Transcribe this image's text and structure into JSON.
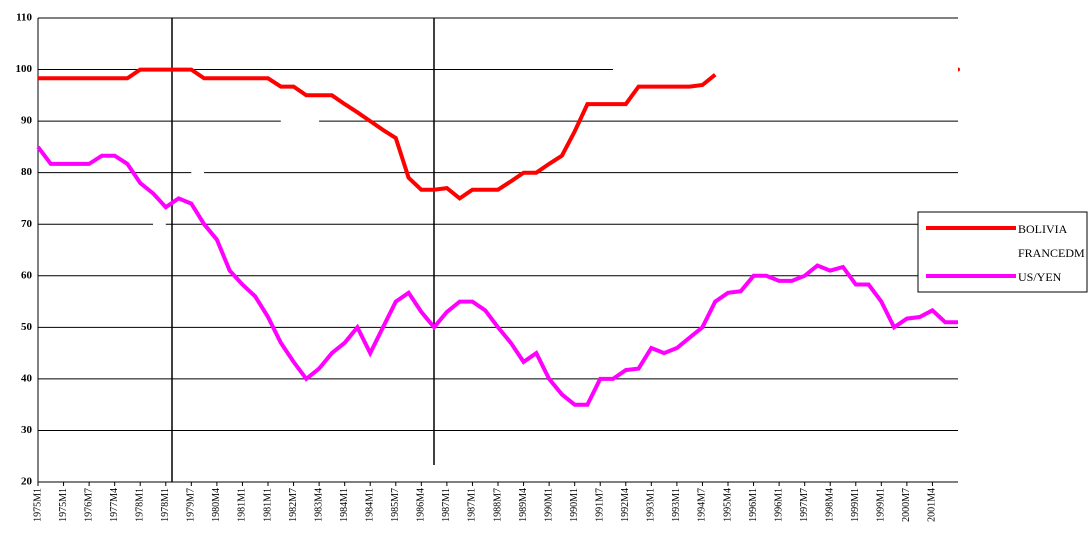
{
  "chart_data": {
    "type": "line",
    "categories": [
      "1975M1",
      null,
      "1975M1",
      null,
      "1976M7",
      null,
      "1977M4",
      null,
      "1978M1",
      null,
      "1978M1",
      null,
      "1979M7",
      null,
      "1980M4",
      null,
      "1981M1",
      null,
      "1981M1",
      null,
      "1982M7",
      null,
      "1983M4",
      null,
      "1984M1",
      null,
      "1984M1",
      null,
      "1985M7",
      null,
      "1986M4",
      null,
      "1987M1",
      null,
      "1987M1",
      null,
      "1988M7",
      null,
      "1989M4",
      null,
      "1990M1",
      null,
      "1990M1",
      null,
      "1991M7",
      null,
      "1992M4",
      null,
      "1993M1",
      null,
      "1993M1",
      null,
      "1994M7",
      null,
      "1995M4",
      null,
      "1996M1",
      null,
      "1996M1",
      null,
      "1997M7",
      null,
      "1998M4",
      null,
      "1999M1",
      null,
      "1999M1",
      null,
      "2000M7",
      null,
      "2001M4",
      null,
      null
    ],
    "series": [
      {
        "name": "BOLIVIA",
        "color": "#ff0000",
        "values": [
          98.3,
          98.3,
          98.3,
          98.3,
          98.3,
          98.3,
          98.3,
          98.3,
          100,
          100,
          100,
          100,
          100,
          98.3,
          98.3,
          98.3,
          98.3,
          98.3,
          98.3,
          96.7,
          96.7,
          95,
          95,
          95,
          93.3,
          91.7,
          90,
          88.3,
          86.7,
          79,
          76.7,
          76.7,
          77,
          75,
          76.7,
          76.7,
          76.7,
          78.3,
          80,
          80,
          81.7,
          83.3,
          88,
          93.3,
          93.3,
          93.3,
          93.3,
          96.7,
          96.7,
          96.7,
          96.7,
          96.7,
          97,
          99,
          null,
          null,
          null,
          null,
          null,
          null,
          null,
          null,
          null,
          null,
          null,
          null,
          null,
          null,
          null,
          null,
          null,
          null,
          100
        ]
      },
      {
        "name": "FRANCEDM",
        "color": "#ffffff",
        "values": [
          null,
          null,
          null,
          null,
          null,
          null,
          null,
          null,
          null,
          70,
          70,
          null,
          80,
          80,
          null,
          null,
          null,
          null,
          null,
          90,
          90,
          90,
          90,
          null,
          null,
          null,
          null,
          null,
          null,
          null,
          null,
          null,
          null,
          null,
          null,
          null,
          null,
          null,
          null,
          null,
          null,
          null,
          null,
          null,
          null,
          100,
          100,
          100,
          100,
          100,
          100,
          100,
          100,
          100,
          100,
          100,
          100,
          100,
          100,
          100,
          100,
          100,
          100,
          100,
          100,
          100,
          100,
          100,
          100,
          100,
          100,
          100,
          100
        ]
      },
      {
        "name": "US/YEN",
        "color": "#ff00ff",
        "values": [
          85,
          81.7,
          81.7,
          81.7,
          81.7,
          83.3,
          83.3,
          81.7,
          78,
          76,
          73.3,
          75,
          74,
          70,
          67,
          61,
          58.3,
          56,
          52,
          47,
          43.3,
          40,
          42,
          45,
          47,
          50,
          45,
          50,
          55,
          56.7,
          53,
          50,
          53,
          55,
          55,
          53.3,
          50,
          47,
          43.3,
          45,
          40,
          37,
          35,
          35,
          40,
          40,
          41.7,
          42,
          46,
          45,
          46,
          48,
          50,
          55,
          56.7,
          57,
          60,
          60,
          59,
          59,
          60,
          62,
          61,
          61.7,
          58.3,
          58.3,
          55,
          50,
          51.7,
          52,
          53.3,
          51,
          51
        ]
      }
    ],
    "ylim": [
      20,
      110
    ],
    "yticks": [
      20,
      30,
      40,
      50,
      60,
      70,
      80,
      90,
      100,
      110
    ],
    "grid": true,
    "legend": "right"
  }
}
